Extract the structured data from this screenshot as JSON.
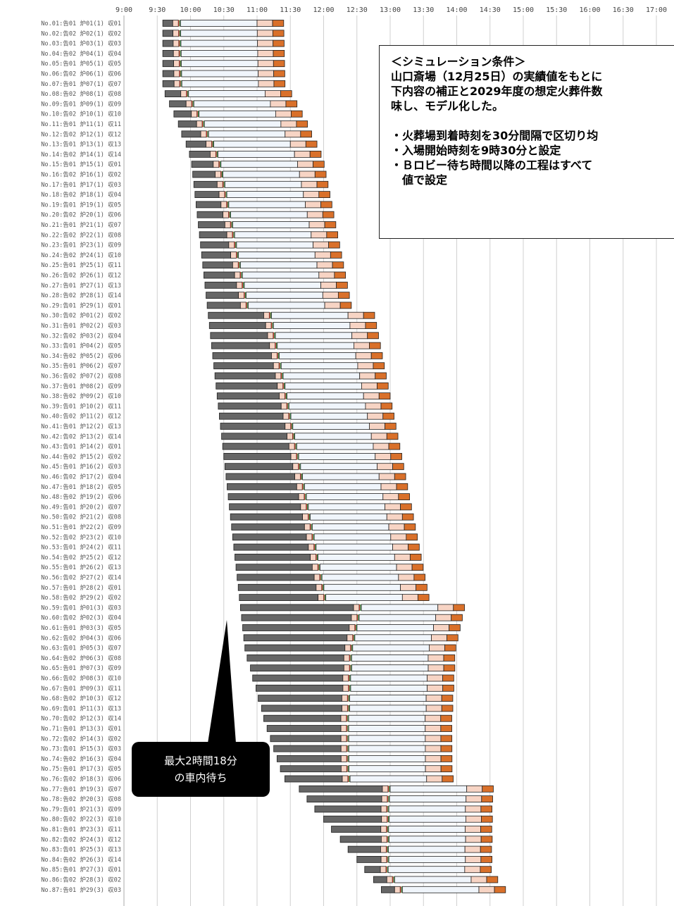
{
  "chart_data": {
    "type": "gantt",
    "time_ticks": [
      "9:00",
      "9:30",
      "10:00",
      "10:30",
      "11:00",
      "11:30",
      "12:00",
      "12:30",
      "13:00",
      "13:30",
      "14:00",
      "14:30",
      "15:00",
      "15:30",
      "16:00",
      "16:30",
      "17:00"
    ],
    "x_range": [
      "9:00",
      "17:00"
    ],
    "grid": true,
    "segment_colors": {
      "car_wait": "#666666",
      "entry": "#f7d4c4",
      "step_red": "#c0392b",
      "step_green": "#2e7d32",
      "lobby_wait": "#f0f5fb",
      "cremation_wait": "#f7d4c4",
      "collection": "#d9702a",
      "outline": "#222222"
    },
    "rows": [
      {
        "label": "No.01:告01 炉01(1) 収01",
        "start": "9:35"
      },
      {
        "label": "No.02:告02 炉02(1) 収02",
        "start": "9:35"
      },
      {
        "label": "No.03:告01 炉03(1) 収03",
        "start": "9:35"
      },
      {
        "label": "No.04:告02 炉04(1) 収04",
        "start": "9:35"
      },
      {
        "label": "No.05:告01 炉05(1) 収05",
        "start": "9:35"
      },
      {
        "label": "No.06:告02 炉06(1) 収06",
        "start": "9:35"
      },
      {
        "label": "No.07:告01 炉07(1) 収07",
        "start": "9:35"
      },
      {
        "label": "No.08:告02 炉08(1) 収08",
        "start": "9:37"
      },
      {
        "label": "No.09:告01 炉09(1) 収09",
        "start": "9:41"
      },
      {
        "label": "No.10:告02 炉10(1) 収10",
        "start": "9:45"
      },
      {
        "label": "No.11:告01 炉11(1) 収11",
        "start": "9:49"
      },
      {
        "label": "No.12:告02 炉12(1) 収12",
        "start": "9:52"
      },
      {
        "label": "No.13:告01 炉13(1) 収13",
        "start": "9:56"
      },
      {
        "label": "No.14:告02 炉14(1) 収14",
        "start": "9:59"
      },
      {
        "label": "No.15:告01 炉15(1) 収01",
        "start": "10:01"
      },
      {
        "label": "No.16:告02 炉16(1) 収02",
        "start": "10:02"
      },
      {
        "label": "No.17:告01 炉17(1) 収03",
        "start": "10:03"
      },
      {
        "label": "No.18:告02 炉18(1) 収04",
        "start": "10:04"
      },
      {
        "label": "No.19:告01 炉19(1) 収05",
        "start": "10:05"
      },
      {
        "label": "No.20:告02 炉20(1) 収06",
        "start": "10:06"
      },
      {
        "label": "No.21:告01 炉21(1) 収07",
        "start": "10:07"
      },
      {
        "label": "No.22:告02 炉22(1) 収08",
        "start": "10:08"
      },
      {
        "label": "No.23:告01 炉23(1) 収09",
        "start": "10:09"
      },
      {
        "label": "No.24:告02 炉24(1) 収10",
        "start": "10:10"
      },
      {
        "label": "No.25:告01 炉25(1) 収11",
        "start": "10:11"
      },
      {
        "label": "No.26:告02 炉26(1) 収12",
        "start": "10:12"
      },
      {
        "label": "No.27:告01 炉27(1) 収13",
        "start": "10:13"
      },
      {
        "label": "No.28:告02 炉28(1) 収14",
        "start": "10:14"
      },
      {
        "label": "No.29:告01 炉29(1) 収01",
        "start": "10:15"
      },
      {
        "label": "No.30:告02 炉01(2) 収02",
        "start": "10:16"
      },
      {
        "label": "No.31:告01 炉02(2) 収03",
        "start": "10:17"
      },
      {
        "label": "No.32:告02 炉03(2) 収04",
        "start": "10:18"
      },
      {
        "label": "No.33:告01 炉04(2) 収05",
        "start": "10:19"
      },
      {
        "label": "No.34:告02 炉05(2) 収06",
        "start": "10:20"
      },
      {
        "label": "No.35:告01 炉06(2) 収07",
        "start": "10:21"
      },
      {
        "label": "No.36:告02 炉07(2) 収08",
        "start": "10:22"
      },
      {
        "label": "No.37:告01 炉08(2) 収09",
        "start": "10:23"
      },
      {
        "label": "No.38:告02 炉09(2) 収10",
        "start": "10:24"
      },
      {
        "label": "No.39:告01 炉10(2) 収11",
        "start": "10:25"
      },
      {
        "label": "No.40:告02 炉11(2) 収12",
        "start": "10:26"
      },
      {
        "label": "No.41:告01 炉12(2) 収13",
        "start": "10:27"
      },
      {
        "label": "No.42:告02 炉13(2) 収14",
        "start": "10:28"
      },
      {
        "label": "No.43:告01 炉14(2) 収01",
        "start": "10:29"
      },
      {
        "label": "No.44:告02 炉15(2) 収02",
        "start": "10:30"
      },
      {
        "label": "No.45:告01 炉16(2) 収03",
        "start": "10:31"
      },
      {
        "label": "No.46:告02 炉17(2) 収04",
        "start": "10:32"
      },
      {
        "label": "No.47:告01 炉18(2) 収05",
        "start": "10:33"
      },
      {
        "label": "No.48:告02 炉19(2) 収06",
        "start": "10:34"
      },
      {
        "label": "No.49:告01 炉20(2) 収07",
        "start": "10:35"
      },
      {
        "label": "No.50:告02 炉21(2) 収08",
        "start": "10:36"
      },
      {
        "label": "No.51:告01 炉22(2) 収09",
        "start": "10:37"
      },
      {
        "label": "No.52:告02 炉23(2) 収10",
        "start": "10:38"
      },
      {
        "label": "No.53:告01 炉24(2) 収11",
        "start": "10:39"
      },
      {
        "label": "No.54:告02 炉25(2) 収12",
        "start": "10:40"
      },
      {
        "label": "No.55:告01 炉26(2) 収13",
        "start": "10:41"
      },
      {
        "label": "No.56:告02 炉27(2) 収14",
        "start": "10:42"
      },
      {
        "label": "No.57:告01 炉28(2) 収01",
        "start": "10:43"
      },
      {
        "label": "No.58:告02 炉29(2) 収02",
        "start": "10:44"
      },
      {
        "label": "No.59:告01 炉01(3) 収03",
        "start": "10:45"
      },
      {
        "label": "No.60:告02 炉02(3) 収04",
        "start": "10:46"
      },
      {
        "label": "No.61:告01 炉03(3) 収05",
        "start": "10:47"
      },
      {
        "label": "No.62:告02 炉04(3) 収06",
        "start": "10:48"
      },
      {
        "label": "No.63:告01 炉05(3) 収07",
        "start": "10:49"
      },
      {
        "label": "No.64:告02 炉06(3) 収08",
        "start": "10:51"
      },
      {
        "label": "No.65:告01 炉07(3) 収09",
        "start": "10:54"
      },
      {
        "label": "No.66:告02 炉08(3) 収10",
        "start": "10:56"
      },
      {
        "label": "No.67:告01 炉09(3) 収11",
        "start": "10:59"
      },
      {
        "label": "No.68:告02 炉10(3) 収12",
        "start": "11:01"
      },
      {
        "label": "No.69:告01 炉11(3) 収13",
        "start": "11:04"
      },
      {
        "label": "No.70:告02 炉12(3) 収14",
        "start": "11:06"
      },
      {
        "label": "No.71:告01 炉13(3) 収01",
        "start": "11:09"
      },
      {
        "label": "No.72:告02 炉14(3) 収02",
        "start": "11:12"
      },
      {
        "label": "No.73:告01 炉15(3) 収03",
        "start": "11:15"
      },
      {
        "label": "No.74:告02 炉16(3) 収04",
        "start": "11:18"
      },
      {
        "label": "No.75:告01 炉17(3) 収05",
        "start": "11:21"
      },
      {
        "label": "No.76:告02 炉18(3) 収06",
        "start": "11:25"
      },
      {
        "label": "No.77:告01 炉19(3) 収07",
        "start": "11:38"
      },
      {
        "label": "No.78:告02 炉20(3) 収08",
        "start": "11:45"
      },
      {
        "label": "No.79:告01 炉21(3) 収09",
        "start": "11:52"
      },
      {
        "label": "No.80:告02 炉22(3) 収10",
        "start": "12:00"
      },
      {
        "label": "No.81:告01 炉23(3) 収11",
        "start": "12:07"
      },
      {
        "label": "No.82:告02 炉24(3) 収12",
        "start": "12:15"
      },
      {
        "label": "No.83:告01 炉25(3) 収13",
        "start": "12:22"
      },
      {
        "label": "No.84:告02 炉26(3) 収14",
        "start": "12:30"
      },
      {
        "label": "No.85:告01 炉27(3) 収01",
        "start": "12:37"
      },
      {
        "label": "No.86:告02 炉28(3) 収02",
        "start": "12:45"
      },
      {
        "label": "No.87:告01 炉29(3) 収03",
        "start": "12:52"
      }
    ],
    "plateau_group_boundaries": [
      29,
      58
    ],
    "ylabel": "",
    "title": ""
  },
  "conditions_box": {
    "line1": "＜シミュレーション条件＞",
    "line2": "山口斎場（12月25日）の実績値をもとに",
    "line3": "下内容の補正と2029年度の想定火葬件数",
    "line4": "味し、モデル化した。",
    "bullet1": "・火葬場到着時刻を30分間隔で区切り均",
    "bullet2": "・入場開始時刻を9時30分と設定",
    "bullet3a": "・Ｂロビー待ち時間以降の工程はすべて",
    "bullet3b": "値で設定"
  },
  "callout": {
    "line1": "最大2時間18分",
    "line2": "の車内待ち"
  }
}
